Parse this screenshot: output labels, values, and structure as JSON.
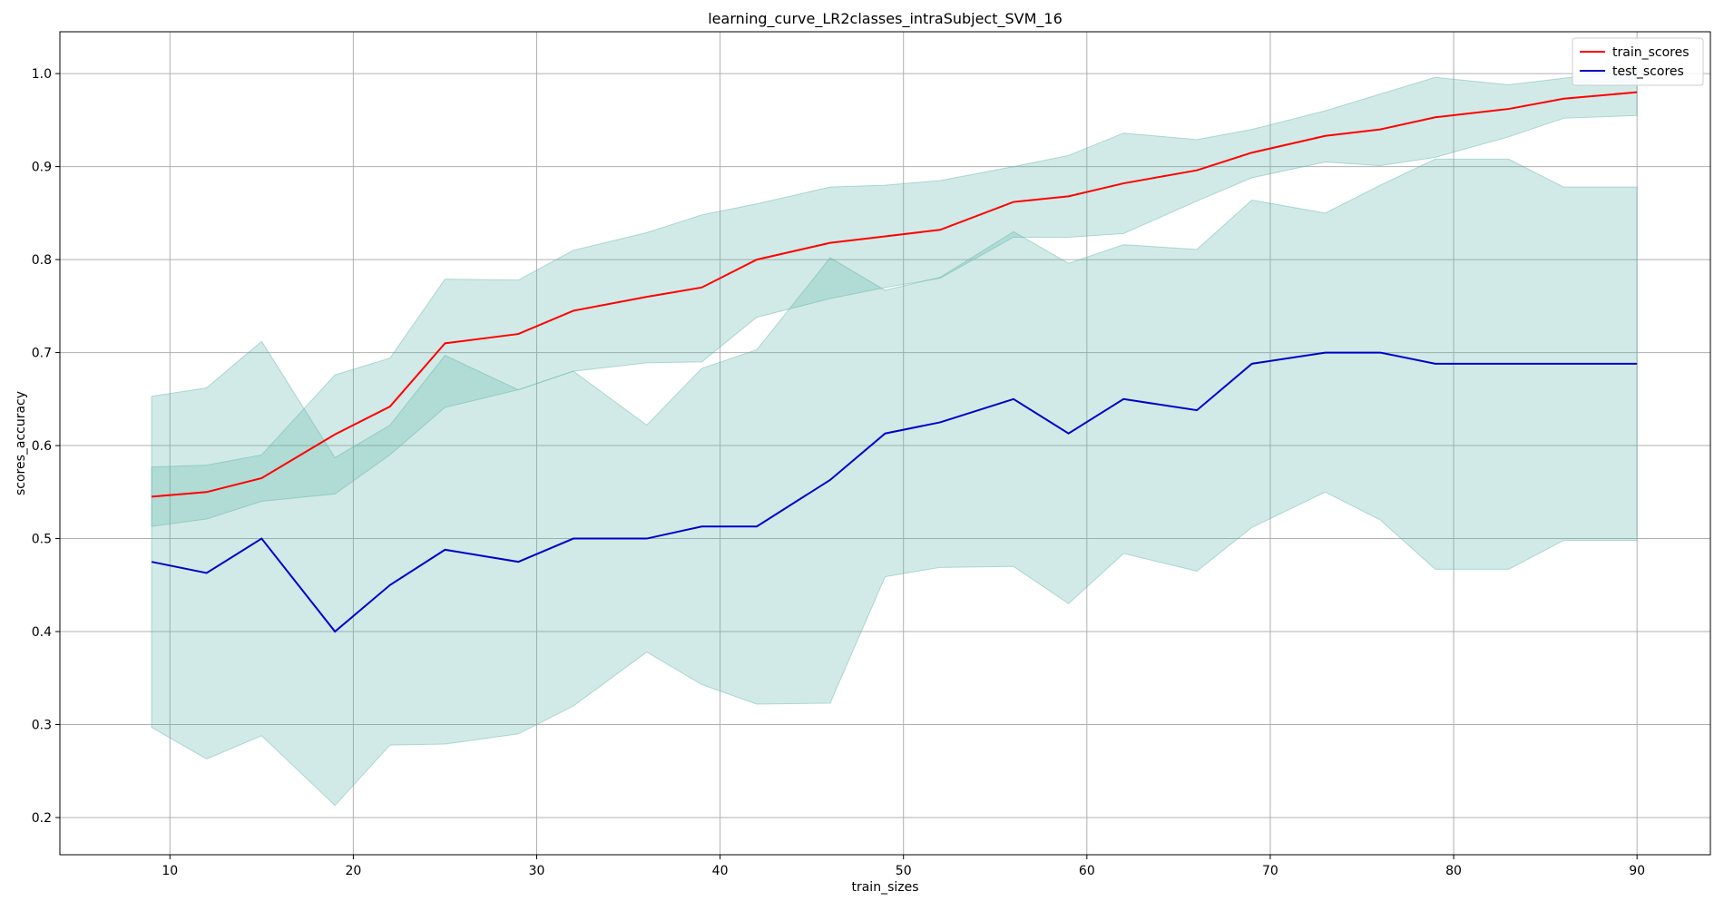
{
  "chart_data": {
    "type": "line",
    "title": "learning_curve_LR2classes_intraSubject_SVM_16",
    "xlabel": "train_sizes",
    "ylabel": "scores_accuracy",
    "xlim": [
      4,
      94
    ],
    "ylim": [
      0.16,
      1.045
    ],
    "xticks": [
      10,
      20,
      30,
      40,
      50,
      60,
      70,
      80,
      90
    ],
    "yticks": [
      0.2,
      0.3,
      0.4,
      0.5,
      0.6,
      0.7,
      0.8,
      0.9,
      1.0
    ],
    "grid": true,
    "legend_position": "top-right",
    "x": [
      9,
      12,
      15,
      19,
      22,
      25,
      29,
      32,
      36,
      39,
      42,
      46,
      49,
      52,
      56,
      59,
      62,
      66,
      69,
      73,
      76,
      79,
      83,
      86,
      90
    ],
    "series": [
      {
        "name": "train_scores",
        "color": "#ff0000",
        "values": [
          0.545,
          0.55,
          0.565,
          0.612,
          0.642,
          0.71,
          0.72,
          0.745,
          0.76,
          0.77,
          0.8,
          0.818,
          0.825,
          0.832,
          0.862,
          0.868,
          0.882,
          0.896,
          0.915,
          0.933,
          0.94,
          0.953,
          0.962,
          0.973,
          0.98
        ],
        "band_lower": [
          0.513,
          0.521,
          0.54,
          0.548,
          0.59,
          0.641,
          0.66,
          0.68,
          0.689,
          0.69,
          0.738,
          0.758,
          0.77,
          0.78,
          0.824,
          0.824,
          0.828,
          0.863,
          0.888,
          0.905,
          0.901,
          0.91,
          0.932,
          0.952,
          0.955
        ],
        "band_upper": [
          0.577,
          0.579,
          0.59,
          0.676,
          0.694,
          0.779,
          0.778,
          0.81,
          0.829,
          0.848,
          0.86,
          0.878,
          0.88,
          0.885,
          0.9,
          0.912,
          0.936,
          0.929,
          0.94,
          0.96,
          0.978,
          0.996,
          0.988,
          0.995,
          1.005
        ]
      },
      {
        "name": "test_scores",
        "color": "#0000cd",
        "values": [
          0.475,
          0.463,
          0.5,
          0.4,
          0.45,
          0.488,
          0.475,
          0.5,
          0.5,
          0.513,
          0.513,
          0.563,
          0.613,
          0.625,
          0.65,
          0.613,
          0.65,
          0.638,
          0.688,
          0.7,
          0.7,
          0.688,
          0.688,
          0.688,
          0.688
        ],
        "band_lower": [
          0.297,
          0.263,
          0.288,
          0.213,
          0.278,
          0.279,
          0.29,
          0.32,
          0.378,
          0.343,
          0.322,
          0.323,
          0.459,
          0.469,
          0.47,
          0.43,
          0.484,
          0.465,
          0.512,
          0.55,
          0.52,
          0.467,
          0.467,
          0.498,
          0.498
        ],
        "band_upper": [
          0.653,
          0.662,
          0.712,
          0.587,
          0.622,
          0.697,
          0.66,
          0.68,
          0.622,
          0.683,
          0.703,
          0.802,
          0.767,
          0.781,
          0.83,
          0.796,
          0.816,
          0.811,
          0.864,
          0.85,
          0.88,
          0.908,
          0.908,
          0.878,
          0.878
        ]
      }
    ],
    "band_color": "#5fb3a8"
  }
}
